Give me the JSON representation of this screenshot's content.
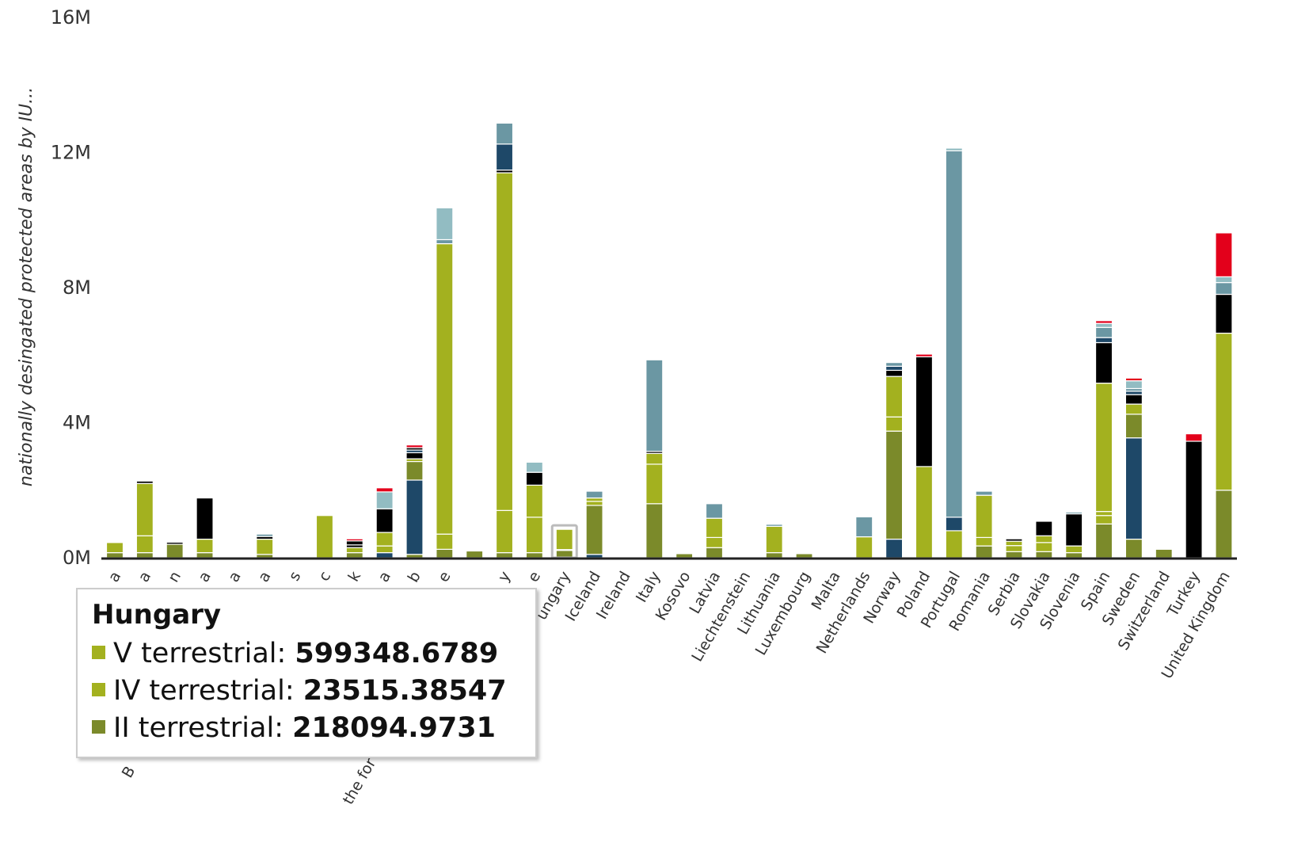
{
  "chart_data": {
    "type": "bar",
    "stacked": true,
    "ylabel": "nationally desingated protected areas by IU...",
    "ylim": [
      0,
      16000000
    ],
    "yticks": [
      "0M",
      "4M",
      "8M",
      "12M",
      "16M"
    ],
    "ytick_values": [
      0,
      4000000,
      8000000,
      12000000,
      16000000
    ],
    "grid": false,
    "categories": [
      "a",
      "a",
      "n",
      "a",
      "a",
      "a",
      "s",
      "c",
      "k",
      "a",
      "b",
      "e",
      "",
      "y",
      "e",
      "Hungary",
      "Iceland",
      "Ireland",
      "Italy",
      "Kosovo",
      "Latvia",
      "Liechtenstein",
      "Lithuania",
      "Luxembourg",
      "Malta",
      "Netherlands",
      "Norway",
      "Poland",
      "Portugal",
      "Romania",
      "Serbia",
      "Slovakia",
      "Slovenia",
      "Spain",
      "Sweden",
      "Switzerland",
      "Turkey",
      "United Kingdom"
    ],
    "visible_category_labels": [
      "a",
      "a",
      "n",
      "a",
      "a",
      "a",
      "s",
      "c",
      "k",
      "a",
      "b",
      "e",
      "",
      "y",
      "e",
      "ungary",
      "Iceland",
      "Ireland",
      "Italy",
      "Kosovo",
      "Latvia",
      "Liechtenstein",
      "Lithuania",
      "Luxembourg",
      "Malta",
      "Netherlands",
      "Norway",
      "Poland",
      "Portugal",
      "Romania",
      "Serbia",
      "Slovakia",
      "Slovenia",
      "Spain",
      "Sweden",
      "Switzerland",
      "Turkey",
      "United Kingdom"
    ],
    "partial_labels_below_tooltip": [
      "B",
      "the for"
    ],
    "colors": {
      "olive_dark": "#7b8a2a",
      "olive": "#a3b11f",
      "black": "#000000",
      "navy": "#1e4868",
      "steel": "#6b97a3",
      "light_teal": "#92bcc2",
      "red": "#e3001b"
    },
    "bars": [
      {
        "segments": [
          [
            "olive_dark",
            150000
          ],
          [
            "olive",
            300000
          ]
        ]
      },
      {
        "segments": [
          [
            "olive_dark",
            150000
          ],
          [
            "olive",
            500000
          ],
          [
            "olive",
            1550000
          ],
          [
            "black",
            70000
          ]
        ]
      },
      {
        "segments": [
          [
            "olive_dark",
            400000
          ],
          [
            "black",
            60000
          ]
        ]
      },
      {
        "segments": [
          [
            "olive_dark",
            150000
          ],
          [
            "olive",
            400000
          ],
          [
            "black",
            1220000
          ]
        ]
      },
      {
        "segments": []
      },
      {
        "segments": [
          [
            "olive_dark",
            100000
          ],
          [
            "olive",
            450000
          ],
          [
            "black",
            80000
          ],
          [
            "steel",
            70000
          ]
        ]
      },
      {
        "segments": []
      },
      {
        "segments": [
          [
            "olive",
            1250000
          ]
        ]
      },
      {
        "segments": [
          [
            "olive_dark",
            150000
          ],
          [
            "olive",
            150000
          ],
          [
            "black",
            80000
          ],
          [
            "black",
            120000
          ],
          [
            "red",
            60000
          ]
        ]
      },
      {
        "segments": [
          [
            "navy",
            150000
          ],
          [
            "olive",
            200000
          ],
          [
            "olive",
            400000
          ],
          [
            "black",
            700000
          ],
          [
            "light_teal",
            500000
          ],
          [
            "red",
            120000
          ]
        ]
      },
      {
        "segments": [
          [
            "olive_dark",
            100000
          ],
          [
            "navy",
            2200000
          ],
          [
            "olive_dark",
            550000
          ],
          [
            "olive",
            80000
          ],
          [
            "black",
            180000
          ],
          [
            "navy",
            80000
          ],
          [
            "black",
            70000
          ],
          [
            "red",
            80000
          ]
        ]
      },
      {
        "segments": [
          [
            "olive_dark",
            250000
          ],
          [
            "olive",
            450000
          ],
          [
            "olive",
            8600000
          ],
          [
            "steel",
            120000
          ],
          [
            "light_teal",
            940000
          ]
        ]
      },
      {
        "segments": [
          [
            "olive_dark",
            200000
          ]
        ]
      },
      {
        "segments": [
          [
            "olive_dark",
            150000
          ],
          [
            "olive",
            1250000
          ],
          [
            "olive",
            10000000
          ],
          [
            "black",
            80000
          ],
          [
            "navy",
            770000
          ],
          [
            "steel",
            620000
          ]
        ]
      },
      {
        "segments": [
          [
            "olive_dark",
            150000
          ],
          [
            "olive",
            1050000
          ],
          [
            "olive",
            950000
          ],
          [
            "black",
            380000
          ],
          [
            "light_teal",
            300000
          ]
        ]
      },
      {
        "segments": [
          [
            "olive_dark",
            218094.9731
          ],
          [
            "olive",
            23515.38547
          ],
          [
            "olive",
            599348.6789
          ]
        ],
        "highlighted": true
      },
      {
        "segments": [
          [
            "navy",
            100000
          ],
          [
            "olive_dark",
            1450000
          ],
          [
            "olive",
            120000
          ],
          [
            "olive",
            100000
          ],
          [
            "steel",
            200000
          ]
        ]
      },
      {
        "segments": []
      },
      {
        "segments": [
          [
            "olive_dark",
            1600000
          ],
          [
            "olive",
            1170000
          ],
          [
            "olive",
            320000
          ],
          [
            "black",
            60000
          ],
          [
            "steel",
            2710000
          ]
        ]
      },
      {
        "segments": [
          [
            "olive_dark",
            120000
          ]
        ]
      },
      {
        "segments": [
          [
            "olive_dark",
            300000
          ],
          [
            "olive",
            300000
          ],
          [
            "olive",
            570000
          ],
          [
            "steel",
            430000
          ]
        ]
      },
      {
        "segments": []
      },
      {
        "segments": [
          [
            "olive_dark",
            150000
          ],
          [
            "olive",
            780000
          ],
          [
            "steel",
            60000
          ]
        ]
      },
      {
        "segments": [
          [
            "olive_dark",
            120000
          ]
        ]
      },
      {
        "segments": []
      },
      {
        "segments": [
          [
            "olive",
            620000
          ],
          [
            "steel",
            590000
          ]
        ]
      },
      {
        "segments": [
          [
            "navy",
            550000
          ],
          [
            "olive_dark",
            3200000
          ],
          [
            "olive",
            420000
          ],
          [
            "olive",
            1200000
          ],
          [
            "black",
            180000
          ],
          [
            "navy",
            120000
          ],
          [
            "steel",
            110000
          ]
        ]
      },
      {
        "segments": [
          [
            "olive",
            2700000
          ],
          [
            "black",
            3250000
          ],
          [
            "red",
            80000
          ]
        ]
      },
      {
        "segments": [
          [
            "olive",
            800000
          ],
          [
            "navy",
            400000
          ],
          [
            "steel",
            10850000
          ],
          [
            "light_teal",
            80000
          ]
        ]
      },
      {
        "segments": [
          [
            "olive_dark",
            350000
          ],
          [
            "olive",
            250000
          ],
          [
            "olive",
            1250000
          ],
          [
            "steel",
            120000
          ]
        ]
      },
      {
        "segments": [
          [
            "olive_dark",
            180000
          ],
          [
            "olive",
            180000
          ],
          [
            "olive",
            130000
          ],
          [
            "black",
            70000
          ]
        ]
      },
      {
        "segments": [
          [
            "olive_dark",
            180000
          ],
          [
            "olive",
            270000
          ],
          [
            "olive",
            200000
          ],
          [
            "black",
            430000
          ]
        ]
      },
      {
        "segments": [
          [
            "olive_dark",
            150000
          ],
          [
            "olive",
            200000
          ],
          [
            "black",
            950000
          ],
          [
            "steel",
            50000
          ]
        ]
      },
      {
        "segments": [
          [
            "olive_dark",
            1000000
          ],
          [
            "olive",
            250000
          ],
          [
            "olive",
            120000
          ],
          [
            "olive",
            3800000
          ],
          [
            "black",
            1200000
          ],
          [
            "navy",
            150000
          ],
          [
            "steel",
            300000
          ],
          [
            "light_teal",
            120000
          ],
          [
            "red",
            80000
          ]
        ]
      },
      {
        "segments": [
          [
            "olive_dark",
            550000
          ],
          [
            "navy",
            3000000
          ],
          [
            "olive_dark",
            700000
          ],
          [
            "olive",
            300000
          ],
          [
            "black",
            280000
          ],
          [
            "navy",
            100000
          ],
          [
            "steel",
            80000
          ],
          [
            "light_teal",
            230000
          ],
          [
            "red",
            80000
          ]
        ]
      },
      {
        "segments": [
          [
            "olive_dark",
            250000
          ]
        ]
      },
      {
        "segments": [
          [
            "black",
            3450000
          ],
          [
            "red",
            220000
          ]
        ]
      },
      {
        "segments": [
          [
            "olive_dark",
            2000000
          ],
          [
            "olive",
            4650000
          ],
          [
            "black",
            1150000
          ],
          [
            "steel",
            350000
          ],
          [
            "light_teal",
            170000
          ],
          [
            "red",
            1300000
          ]
        ]
      }
    ]
  },
  "tooltip": {
    "title": "Hungary",
    "rows": [
      {
        "label": "V terrestrial: ",
        "value": "599348.6789",
        "color": "#a3b11f"
      },
      {
        "label": "IV terrestrial: ",
        "value": "23515.38547",
        "color": "#a3b11f"
      },
      {
        "label": "II terrestrial: ",
        "value": "218094.9731",
        "color": "#7b8a2a"
      }
    ]
  }
}
